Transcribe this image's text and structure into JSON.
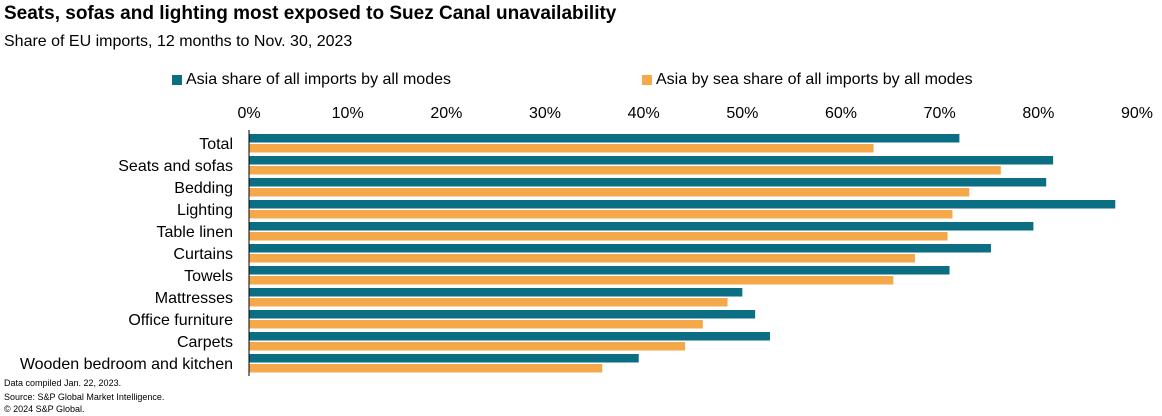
{
  "colors": {
    "series1": "#0b6e82",
    "series2": "#f4a84a",
    "axis": "#000000"
  },
  "chart_data": {
    "type": "bar",
    "orientation": "horizontal",
    "title": "Seats, sofas and lighting most exposed to Suez Canal unavailability",
    "subtitle": "Share of EU imports, 12 months to Nov. 30, 2023",
    "legend_placement": "top",
    "xlim": [
      0,
      90
    ],
    "xticks": [
      "0%",
      "10%",
      "20%",
      "30%",
      "40%",
      "50%",
      "60%",
      "70%",
      "80%",
      "90%"
    ],
    "grid": false,
    "categories": [
      "Total",
      "Seats and sofas",
      "Bedding",
      "Lighting",
      "Table linen",
      "Curtains",
      "Towels",
      "Mattresses",
      "Office furniture",
      "Carpets",
      "Wooden bedroom and kitchen"
    ],
    "series": [
      {
        "name": "Asia share of all imports by all modes",
        "values": [
          72.0,
          81.5,
          80.8,
          87.8,
          79.5,
          75.2,
          71.0,
          50.0,
          51.3,
          52.8,
          39.5
        ]
      },
      {
        "name": "Asia by sea share of all imports by all modes",
        "values": [
          63.3,
          76.2,
          73.0,
          71.3,
          70.8,
          67.5,
          65.3,
          48.5,
          46.0,
          44.2,
          35.8
        ]
      }
    ]
  },
  "footer": {
    "line1": "Data compiled Jan. 22, 2023.",
    "line2": "Source: S&P Global Market Intelligence.",
    "line3": "© 2024 S&P Global."
  }
}
